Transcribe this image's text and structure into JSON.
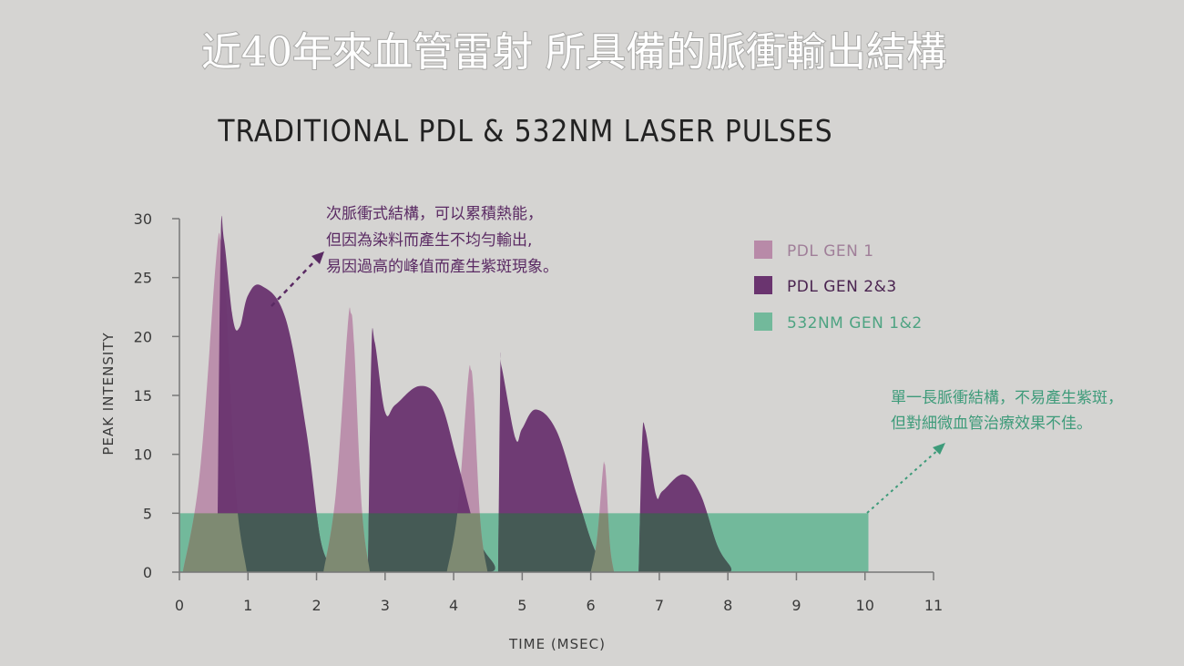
{
  "slide": {
    "title": "近40年來血管雷射 所具備的脈衝輸出結構"
  },
  "colors": {
    "pdl_gen1": "#b88aa8",
    "pdl_gen23": "#6a346f",
    "gen_532": "#72b99b",
    "axis": "#777777",
    "anno_purple": "#5a2a63",
    "anno_green": "#3e9b7a"
  },
  "chart_data": {
    "type": "area",
    "title": "TRADITIONAL PDL & 532NM LASER PULSES",
    "xlabel": "TIME (MSEC)",
    "ylabel": "PEAK INTENSITY",
    "xlim": [
      0,
      11
    ],
    "ylim": [
      0,
      30
    ],
    "x_ticks": [
      0,
      1,
      2,
      3,
      4,
      5,
      6,
      7,
      8,
      9,
      10,
      11
    ],
    "y_ticks": [
      0,
      5,
      10,
      15,
      20,
      25,
      30
    ],
    "legend_position": "right",
    "series": [
      {
        "name": "PDL GEN 1",
        "color": "#b88aa8",
        "peaks": [
          {
            "x": 0.6,
            "y": 28.2
          },
          {
            "x": 2.5,
            "y": 22.0
          },
          {
            "x": 4.25,
            "y": 17.2
          },
          {
            "x": 6.2,
            "y": 9.2
          }
        ]
      },
      {
        "name": "PDL GEN 2&3",
        "color": "#6a346f",
        "peaks": [
          {
            "x": 0.65,
            "y": 28.2
          },
          {
            "x": 1.2,
            "y": 24.3
          },
          {
            "x": 2.85,
            "y": 19.5
          },
          {
            "x": 3.5,
            "y": 15.8
          },
          {
            "x": 4.7,
            "y": 17.4
          },
          {
            "x": 5.2,
            "y": 13.8
          },
          {
            "x": 6.8,
            "y": 12.0
          },
          {
            "x": 7.35,
            "y": 8.3
          }
        ]
      },
      {
        "name": "532NM GEN 1&2",
        "color": "#72b99b",
        "x": [
          0,
          10.05
        ],
        "y": 5
      }
    ],
    "annotations": [
      {
        "lines": [
          "次脈衝式結構，可以累積熱能，",
          "但因為染料而產生不均勻輸出,",
          "易因過高的峰值而產生紫斑現象。"
        ],
        "color": "#5a2a63"
      },
      {
        "lines": [
          "單一長脈衝結構，不易產生紫斑，",
          "但對細微血管治療效果不佳。"
        ],
        "color": "#3e9b7a"
      }
    ]
  }
}
